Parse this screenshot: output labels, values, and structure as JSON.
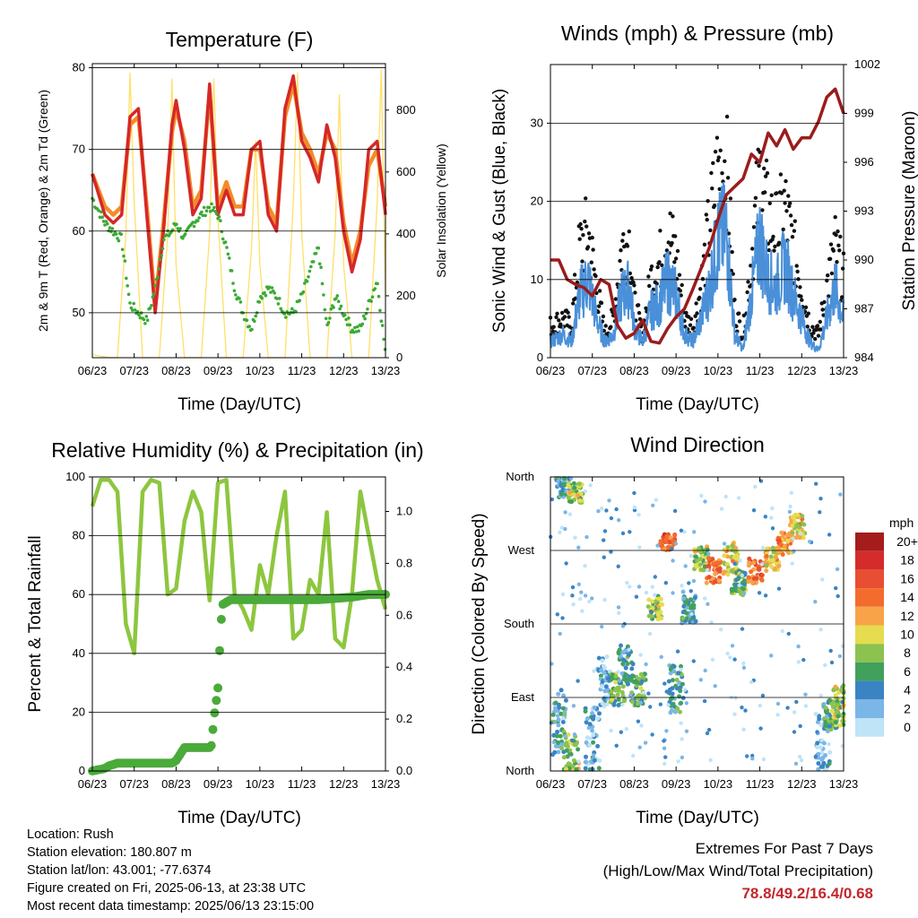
{
  "chart_data": [
    {
      "type": "line",
      "title": "Temperature (F)",
      "xlabel": "Time (Day/UTC)",
      "ylabel": "2m & 9m T (Red, Orange) & 2m Td (Green)",
      "ylabel_right": "Solar Insolation (Yellow)",
      "categories": [
        "06/23",
        "07/23",
        "08/23",
        "09/23",
        "10/23",
        "11/23",
        "12/23",
        "13/23"
      ],
      "ylim": [
        44.5,
        80.5
      ],
      "yticks": [
        50,
        60,
        70,
        80
      ],
      "ylim_right": [
        0,
        950
      ],
      "yticks_right": [
        0,
        200,
        400,
        600,
        800
      ],
      "series": [
        {
          "color": "#d62728",
          "x": [
            6,
            6.3,
            6.5,
            6.7,
            6.9,
            7.1,
            7.3,
            7.5,
            7.7,
            7.9,
            8.0,
            8.2,
            8.4,
            8.6,
            8.8,
            9.0,
            9.2,
            9.4,
            9.6,
            9.8,
            10.0,
            10.2,
            10.4,
            10.6,
            10.8,
            11.0,
            11.2,
            11.4,
            11.6,
            11.8,
            12.0,
            12.2,
            12.4,
            12.6,
            12.8,
            13.0
          ],
          "y": [
            67,
            62,
            61,
            62,
            74,
            75,
            62,
            50,
            60,
            73,
            76,
            70,
            62,
            64,
            78,
            62,
            65,
            62,
            62,
            70,
            71,
            62,
            60,
            75,
            79,
            71,
            69,
            66,
            73,
            69,
            60,
            55,
            59,
            70,
            71,
            62
          ]
        },
        {
          "color": "#f28c28",
          "x": [
            6,
            6.3,
            6.5,
            6.7,
            6.9,
            7.1,
            7.3,
            7.5,
            7.7,
            7.9,
            8.0,
            8.2,
            8.4,
            8.6,
            8.8,
            9.0,
            9.2,
            9.4,
            9.6,
            9.8,
            10.0,
            10.2,
            10.4,
            10.6,
            10.8,
            11.0,
            11.2,
            11.4,
            11.6,
            11.8,
            12.0,
            12.2,
            12.4,
            12.6,
            12.8,
            13.0
          ],
          "y": [
            67,
            63,
            62,
            63,
            73,
            74,
            63,
            51,
            61,
            72,
            75,
            71,
            63,
            65,
            77,
            63,
            66,
            63,
            63,
            70,
            70,
            63,
            61,
            74,
            78,
            72,
            70,
            67,
            72,
            70,
            61,
            56,
            60,
            68,
            70,
            63
          ]
        },
        {
          "color": "#3aaa35",
          "x": [
            6,
            6.3,
            6.5,
            6.7,
            6.9,
            7.1,
            7.3,
            7.5,
            7.7,
            7.9,
            8.0,
            8.2,
            8.4,
            8.6,
            8.8,
            9.0,
            9.2,
            9.4,
            9.6,
            9.8,
            10.0,
            10.2,
            10.4,
            10.6,
            10.8,
            11.0,
            11.2,
            11.4,
            11.6,
            11.8,
            12.0,
            12.2,
            12.4,
            12.6,
            12.8,
            13.0
          ],
          "y": [
            64,
            61,
            60,
            59,
            51,
            50,
            49,
            53,
            59,
            60,
            61,
            59,
            61,
            62,
            63,
            62,
            58,
            53,
            50,
            48,
            52,
            53,
            52,
            50,
            50,
            52,
            55,
            58,
            48,
            52,
            50,
            48,
            48,
            51,
            54,
            45
          ]
        },
        {
          "color": "#ffe066",
          "x": [
            6.0,
            6.4,
            6.6,
            6.8,
            6.9,
            7.0,
            7.2,
            7.4,
            7.6,
            7.8,
            7.9,
            8.0,
            8.2,
            8.4,
            8.6,
            8.8,
            8.9,
            9.0,
            9.2,
            9.4,
            9.6,
            9.8,
            9.9,
            10.0,
            10.2,
            10.4,
            10.6,
            10.8,
            10.9,
            11.0,
            11.2,
            11.4,
            11.6,
            11.8,
            11.9,
            12.0,
            12.2,
            12.4,
            12.6,
            12.8,
            12.9,
            13.0
          ],
          "y": [
            10,
            0,
            0,
            400,
            920,
            500,
            0,
            0,
            0,
            400,
            900,
            300,
            0,
            0,
            0,
            400,
            900,
            450,
            0,
            0,
            0,
            350,
            700,
            300,
            0,
            0,
            0,
            500,
            920,
            400,
            0,
            0,
            0,
            400,
            850,
            300,
            0,
            0,
            0,
            500,
            930,
            200
          ]
        }
      ]
    },
    {
      "type": "line",
      "title": "Winds (mph) & Pressure (mb)",
      "xlabel": "Time (Day/UTC)",
      "ylabel": "Sonic Wind & Gust (Blue, Black)",
      "ylabel_right": "Station Pressure (Maroon)",
      "categories": [
        "06/23",
        "07/23",
        "08/23",
        "09/23",
        "10/23",
        "11/23",
        "12/23",
        "13/23"
      ],
      "ylim": [
        0,
        37.5
      ],
      "yticks": [
        0,
        10,
        20,
        30
      ],
      "ylim_right": [
        984,
        1002
      ],
      "yticks_right": [
        984,
        987,
        990,
        993,
        996,
        999,
        1002
      ],
      "series": [
        {
          "color": "#4a90d9",
          "x": [
            6,
            6.3,
            6.5,
            6.7,
            6.9,
            7.1,
            7.3,
            7.5,
            7.7,
            7.9,
            8.0,
            8.2,
            8.4,
            8.6,
            8.8,
            9.0,
            9.2,
            9.4,
            9.6,
            9.8,
            10.0,
            10.2,
            10.4,
            10.6,
            10.8,
            11.0,
            11.2,
            11.4,
            11.6,
            11.8,
            12.0,
            12.2,
            12.4,
            12.6,
            12.8,
            13.0
          ],
          "y": [
            2,
            3,
            2,
            8,
            10,
            5,
            2,
            3,
            8,
            9,
            4,
            2,
            6,
            7,
            10,
            8,
            3,
            2,
            5,
            9,
            15,
            16,
            3,
            1,
            8,
            15,
            10,
            9,
            12,
            8,
            5,
            2,
            1,
            5,
            9,
            5
          ]
        },
        {
          "color": "#111111",
          "x": [
            6,
            6.3,
            6.5,
            6.7,
            6.9,
            7.1,
            7.3,
            7.5,
            7.7,
            7.9,
            8.0,
            8.2,
            8.4,
            8.6,
            8.8,
            9.0,
            9.2,
            9.4,
            9.6,
            9.8,
            10.0,
            10.2,
            10.4,
            10.6,
            10.8,
            11.0,
            11.2,
            11.4,
            11.6,
            11.8,
            12.0,
            12.2,
            12.4,
            12.6,
            12.8,
            13.0
          ],
          "y": [
            4,
            5,
            4,
            14,
            16,
            9,
            3,
            5,
            14,
            15,
            7,
            3,
            10,
            12,
            16,
            13,
            5,
            4,
            9,
            17,
            24,
            25,
            6,
            3,
            13,
            23,
            18,
            16,
            19,
            14,
            9,
            4,
            3,
            9,
            14,
            10
          ]
        },
        {
          "color": "#9b1c1c",
          "axis": "right",
          "x": [
            6,
            6.2,
            6.4,
            6.6,
            6.8,
            7.0,
            7.2,
            7.4,
            7.6,
            7.8,
            8.0,
            8.2,
            8.4,
            8.6,
            8.8,
            9.0,
            9.2,
            9.4,
            9.6,
            9.8,
            10.0,
            10.2,
            10.4,
            10.6,
            10.8,
            11.0,
            11.2,
            11.4,
            11.6,
            11.8,
            12.0,
            12.2,
            12.4,
            12.6,
            12.8,
            13.0
          ],
          "y": [
            990,
            990,
            988.8,
            988.5,
            988.3,
            987.8,
            988.8,
            988.5,
            986,
            985.2,
            985.5,
            986.3,
            985,
            984.9,
            985.8,
            986.5,
            987,
            988.2,
            989.5,
            990.8,
            992.5,
            994,
            994.5,
            995,
            996.5,
            996,
            997.8,
            997,
            998,
            996.8,
            997.5,
            997.5,
            998.5,
            1000,
            1000.5,
            999
          ]
        }
      ]
    },
    {
      "type": "line",
      "title": "Relative Humidity (%) & Precipitation (in)",
      "xlabel": "Time (Day/UTC)",
      "ylabel": "Percent & Total Rainfall",
      "categories": [
        "06/23",
        "07/23",
        "08/23",
        "09/23",
        "10/23",
        "11/23",
        "12/23",
        "13/23"
      ],
      "ylim": [
        0,
        100
      ],
      "yticks": [
        0,
        20,
        40,
        60,
        80,
        100
      ],
      "ylim_right": [
        0,
        1.133
      ],
      "yticks_right": [
        "0.0",
        "0.2",
        "0.4",
        "0.6",
        "0.8",
        "1.0"
      ],
      "series": [
        {
          "color": "#8dc63f",
          "x": [
            6,
            6.2,
            6.4,
            6.6,
            6.8,
            7.0,
            7.2,
            7.4,
            7.6,
            7.8,
            8.0,
            8.2,
            8.4,
            8.6,
            8.8,
            9.0,
            9.2,
            9.4,
            9.6,
            9.8,
            10.0,
            10.2,
            10.4,
            10.6,
            10.8,
            11.0,
            11.2,
            11.4,
            11.6,
            11.8,
            12.0,
            12.2,
            12.4,
            12.6,
            12.8,
            13.0
          ],
          "y": [
            90,
            99,
            99,
            95,
            50,
            40,
            95,
            99,
            98,
            60,
            62,
            85,
            95,
            88,
            58,
            98,
            99,
            60,
            55,
            48,
            70,
            60,
            80,
            95,
            45,
            48,
            65,
            60,
            88,
            45,
            42,
            60,
            95,
            80,
            65,
            55
          ]
        },
        {
          "color": "#4aaa3a",
          "axis": "right",
          "x": [
            6,
            6.3,
            6.4,
            6.6,
            7.0,
            7.6,
            7.9,
            8.0,
            8.2,
            8.4,
            8.6,
            8.8,
            8.85,
            8.9,
            9.0,
            9.05,
            9.1,
            9.3,
            9.6,
            10.0,
            10.6,
            11.4,
            12.2,
            12.6,
            12.9,
            13.0
          ],
          "y": [
            0,
            0.01,
            0.02,
            0.03,
            0.03,
            0.03,
            0.03,
            0.04,
            0.09,
            0.09,
            0.09,
            0.09,
            0.1,
            0.2,
            0.32,
            0.5,
            0.64,
            0.66,
            0.66,
            0.66,
            0.66,
            0.66,
            0.67,
            0.68,
            0.68,
            0.68
          ]
        }
      ]
    },
    {
      "type": "scatter",
      "title": "Wind Direction",
      "xlabel": "Time (Day/UTC)",
      "ylabel": "Direction (Colored By Speed)",
      "categories": [
        "06/23",
        "07/23",
        "08/23",
        "09/23",
        "10/23",
        "11/23",
        "12/23",
        "13/23"
      ],
      "yticks": [
        "North",
        "West",
        "South",
        "East",
        "North"
      ],
      "legend": {
        "title": "mph",
        "labels": [
          "20+",
          "18",
          "16",
          "14",
          "12",
          "10",
          "8",
          "6",
          "4",
          "2",
          "0"
        ],
        "colors": [
          "#a51c1c",
          "#d42b2b",
          "#e84e31",
          "#f26d2d",
          "#f8a348",
          "#e6dc4f",
          "#8cc24f",
          "#42a05d",
          "#3b84c4",
          "#7ab6e6",
          "#bfe3f7"
        ]
      },
      "clusters": [
        {
          "x": 6.3,
          "y": 350,
          "spread": 15,
          "speed": 4
        },
        {
          "x": 6.6,
          "y": 340,
          "spread": 12,
          "speed": 8
        },
        {
          "x": 6.2,
          "y": 60,
          "spread": 40,
          "speed": 4
        },
        {
          "x": 6.5,
          "y": 20,
          "spread": 25,
          "speed": 8
        },
        {
          "x": 7.0,
          "y": 40,
          "spread": 40,
          "speed": 2
        },
        {
          "x": 7.3,
          "y": 110,
          "spread": 30,
          "speed": 2
        },
        {
          "x": 7.6,
          "y": 100,
          "spread": 20,
          "speed": 6
        },
        {
          "x": 7.8,
          "y": 130,
          "spread": 25,
          "speed": 4
        },
        {
          "x": 8.1,
          "y": 100,
          "spread": 20,
          "speed": 6
        },
        {
          "x": 8.5,
          "y": 200,
          "spread": 15,
          "speed": 8
        },
        {
          "x": 8.8,
          "y": 280,
          "spread": 10,
          "speed": 14
        },
        {
          "x": 9.0,
          "y": 100,
          "spread": 30,
          "speed": 4
        },
        {
          "x": 9.3,
          "y": 200,
          "spread": 20,
          "speed": 4
        },
        {
          "x": 9.6,
          "y": 260,
          "spread": 15,
          "speed": 8
        },
        {
          "x": 9.9,
          "y": 245,
          "spread": 15,
          "speed": 14
        },
        {
          "x": 10.3,
          "y": 260,
          "spread": 20,
          "speed": 10
        },
        {
          "x": 10.5,
          "y": 230,
          "spread": 15,
          "speed": 6
        },
        {
          "x": 10.9,
          "y": 245,
          "spread": 15,
          "speed": 14
        },
        {
          "x": 11.3,
          "y": 260,
          "spread": 15,
          "speed": 10
        },
        {
          "x": 11.6,
          "y": 280,
          "spread": 15,
          "speed": 12
        },
        {
          "x": 11.9,
          "y": 300,
          "spread": 15,
          "speed": 10
        },
        {
          "x": 12.5,
          "y": 40,
          "spread": 40,
          "speed": 2
        },
        {
          "x": 12.7,
          "y": 70,
          "spread": 20,
          "speed": 6
        },
        {
          "x": 12.9,
          "y": 80,
          "spread": 25,
          "speed": 8
        }
      ]
    }
  ],
  "footer": {
    "location": "Location: Rush",
    "elevation": "Station elevation: 180.807 m",
    "latlon": "Station lat/lon: 43.001; -77.6374",
    "created": "Figure created on Fri, 2025-06-13, at 23:38 UTC",
    "recent": "Most recent data timestamp: 2025/06/13 23:15:00"
  },
  "extremes": {
    "title": "Extremes For Past 7 Days",
    "subtitle": "(High/Low/Max Wind/Total Precipitation)",
    "values": "78.8/49.2/16.4/0.68"
  }
}
